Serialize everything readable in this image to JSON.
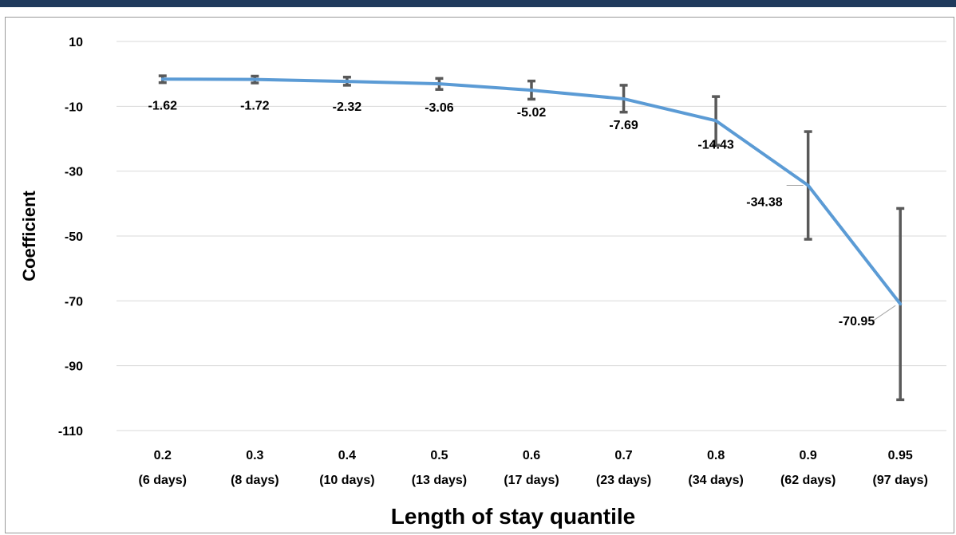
{
  "chart_data": {
    "type": "line",
    "xlabel": "Length of stay quantile",
    "ylabel": "Coefficient",
    "ylim": [
      -110,
      10
    ],
    "y_ticks": [
      10,
      -10,
      -30,
      -50,
      -70,
      -90,
      -110
    ],
    "grid": true,
    "categories": [
      {
        "quantile": "0.2",
        "days": "(6 days)"
      },
      {
        "quantile": "0.3",
        "days": "(8 days)"
      },
      {
        "quantile": "0.4",
        "days": "(10 days)"
      },
      {
        "quantile": "0.5",
        "days": "(13 days)"
      },
      {
        "quantile": "0.6",
        "days": "(17 days)"
      },
      {
        "quantile": "0.7",
        "days": "(23 days)"
      },
      {
        "quantile": "0.8",
        "days": "(34 days)"
      },
      {
        "quantile": "0.9",
        "days": "(62 days)"
      },
      {
        "quantile": "0.95",
        "days": "(97 days)"
      }
    ],
    "series": [
      {
        "values": [
          -1.62,
          -1.72,
          -2.32,
          -3.06,
          -5.02,
          -7.69,
          -14.43,
          -34.38,
          -70.95
        ],
        "labels": [
          "-1.62",
          "-1.72",
          "-2.32",
          "-3.06",
          "-5.02",
          "-7.69",
          "-14.43",
          "-34.38",
          "-70.95"
        ],
        "error_low": [
          -2.7,
          -2.8,
          -3.5,
          -4.8,
          -7.8,
          -11.8,
          -22.0,
          -51.0,
          -100.5
        ],
        "error_high": [
          -0.6,
          -0.7,
          -1.0,
          -1.4,
          -2.2,
          -3.5,
          -7.0,
          -17.8,
          -41.5
        ],
        "color": "#5b9bd5"
      }
    ],
    "error_bar_color": "#595959"
  }
}
